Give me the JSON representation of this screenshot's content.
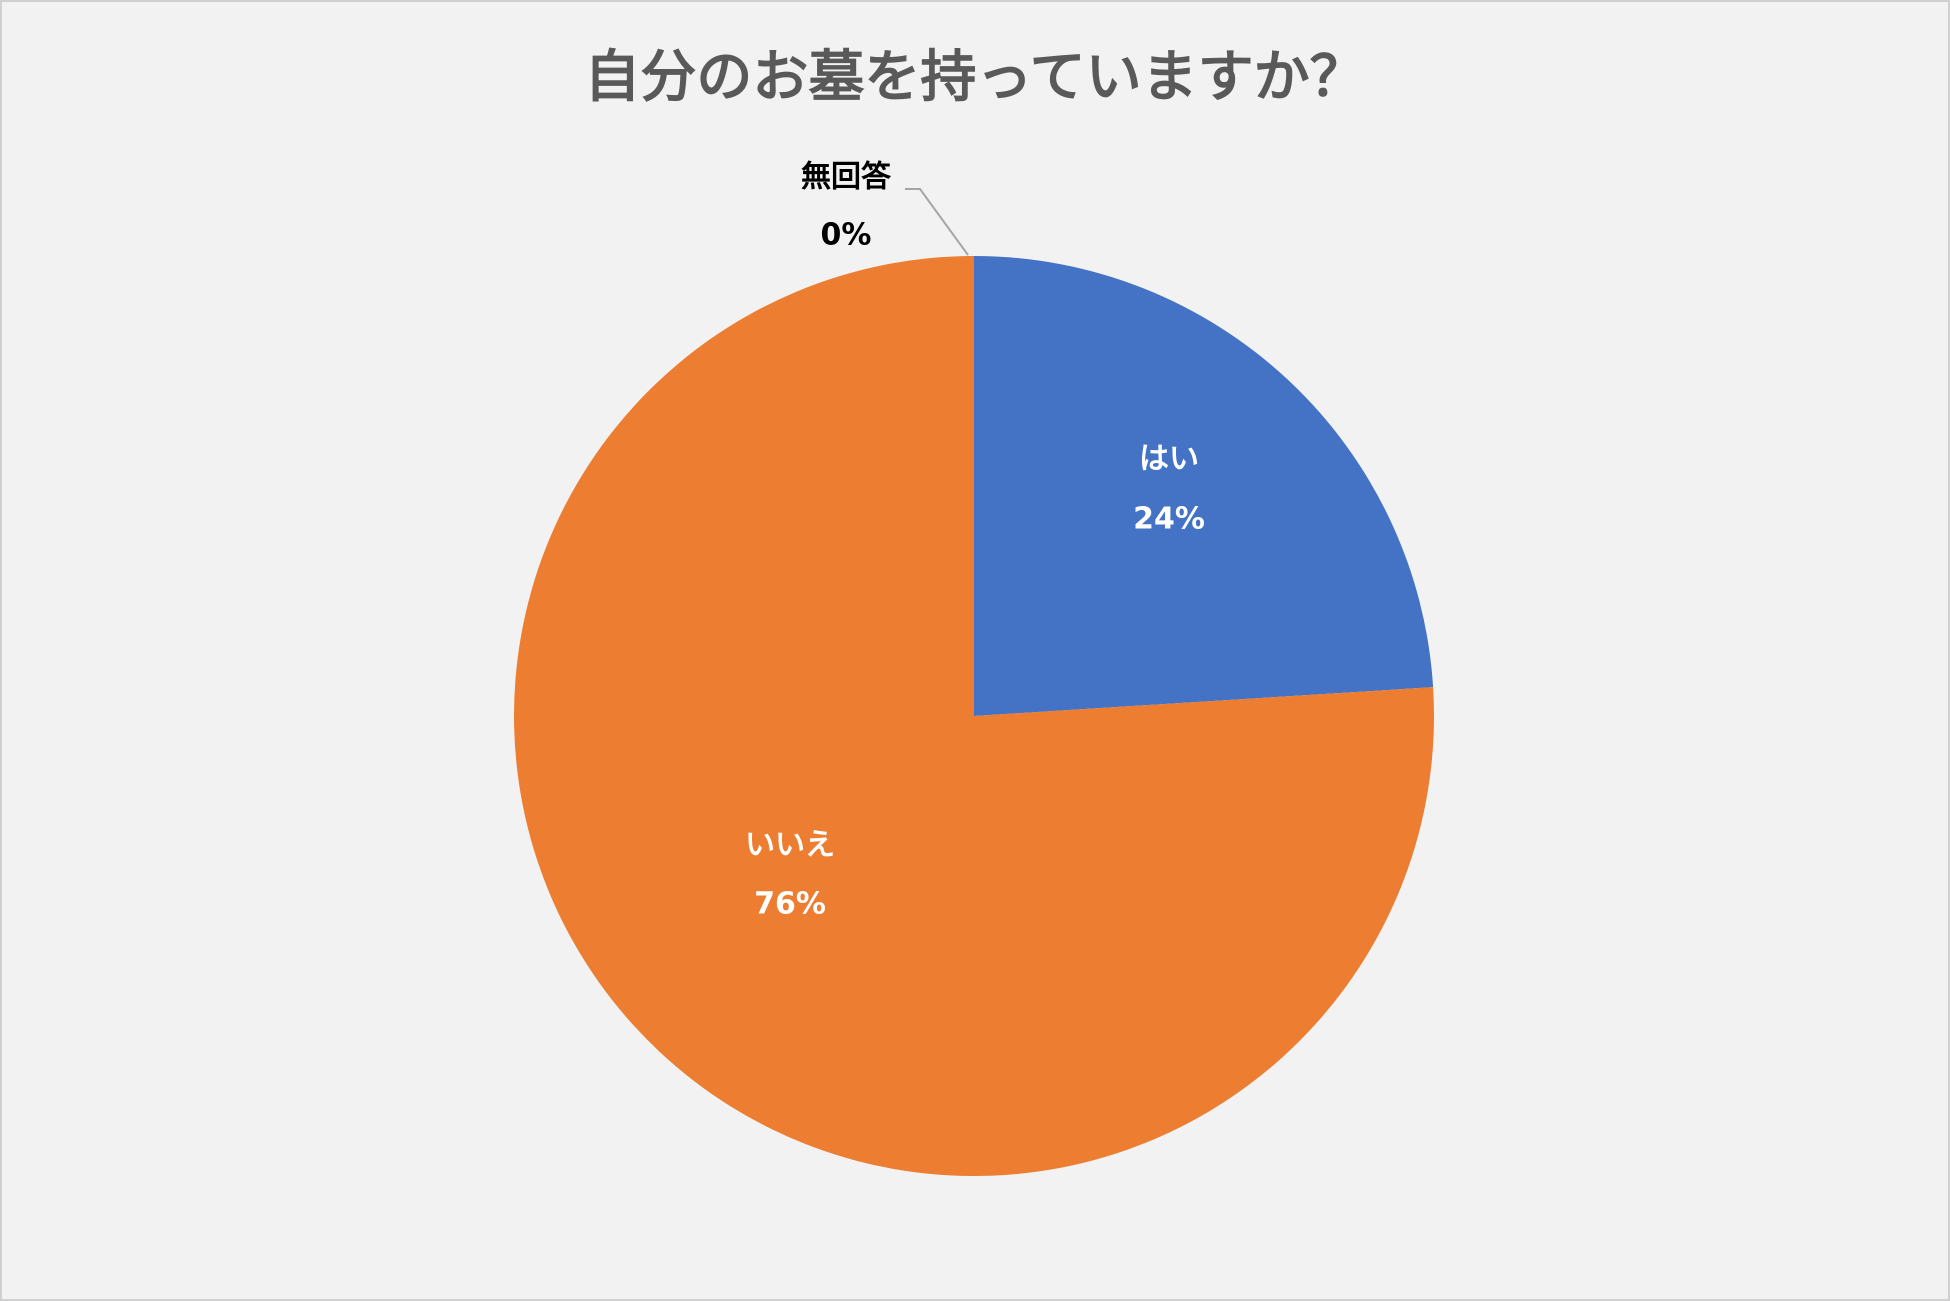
{
  "chart_data": {
    "type": "pie",
    "title": "自分のお墓を持っていますか？",
    "categories": [
      "はい",
      "いいえ",
      "無回答"
    ],
    "values": [
      24,
      76,
      0
    ],
    "value_labels": [
      "24%",
      "76%",
      "0%"
    ],
    "colors": [
      "#4472c4",
      "#ed7d31",
      "#a5a5a5"
    ]
  }
}
